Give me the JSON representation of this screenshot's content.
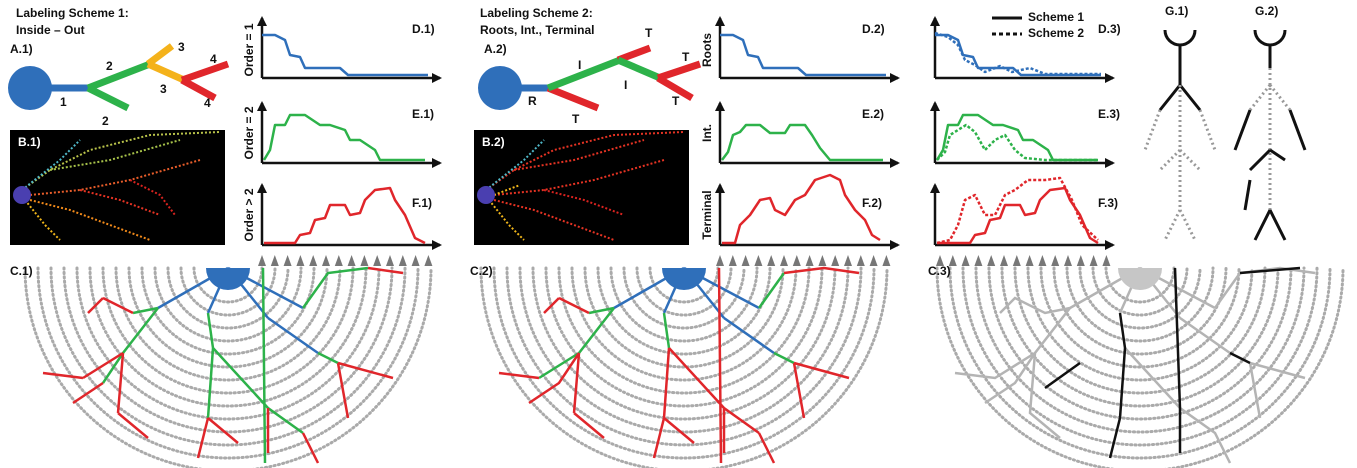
{
  "panel1": {
    "heading": [
      "Labeling Scheme 1:",
      "Inside – Out"
    ],
    "labels": {
      "a": "A.1)",
      "b": "B.1)",
      "c": "C.1)",
      "d": "D.1)",
      "e": "E.1)",
      "f": "F.1)"
    },
    "branch_labels": [
      "1",
      "2",
      "2",
      "3",
      "3",
      "4",
      "4"
    ],
    "axis_labels": [
      "Order = 1",
      "Order = 2",
      "Order > 2"
    ]
  },
  "panel2": {
    "heading": [
      "Labeling Scheme 2:",
      "Roots, Int., Terminal"
    ],
    "labels": {
      "a": "A.2)",
      "b": "B.2)",
      "c": "C.2)",
      "d": "D.2)",
      "e": "E.2)",
      "f": "F.2)"
    },
    "branch_labels": [
      "R",
      "I",
      "T",
      "I",
      "T",
      "T",
      "T"
    ],
    "axis_labels": [
      "Roots",
      "Int.",
      "Terminal"
    ]
  },
  "panel3": {
    "legend": [
      "Scheme 1",
      "Scheme 2"
    ],
    "labels": {
      "c": "C.3)",
      "d": "D.3)",
      "e": "E.3)",
      "f": "F.3)",
      "g1": "G.1)",
      "g2": "G.2)"
    }
  }
}
